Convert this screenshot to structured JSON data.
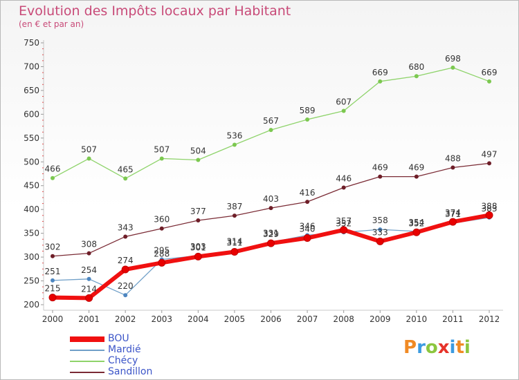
{
  "title": "Evolution des Impôts locaux par Habitant",
  "subtitle": "(en € et par an)",
  "logo": {
    "text": "Proxiti",
    "letters": [
      "P",
      "r",
      "o",
      "x",
      "i",
      "t",
      "i"
    ],
    "colors": [
      "#f08a24",
      "#3c9be0",
      "#8cc63f",
      "#e6332a",
      "#3c9be0",
      "#f08a24",
      "#8cc63f"
    ]
  },
  "chart_data": {
    "type": "line",
    "title": "Evolution des Impôts locaux par Habitant",
    "subtitle": "(en € et par an)",
    "xlabel": "",
    "ylabel": "",
    "ylim": [
      200,
      750
    ],
    "yticks": [
      200,
      250,
      300,
      350,
      400,
      450,
      500,
      550,
      600,
      650,
      700,
      750
    ],
    "x": [
      "2000",
      "2001",
      "2002",
      "2003",
      "2004",
      "2005",
      "2006",
      "2007",
      "2008",
      "2009",
      "2010",
      "2011",
      "2012"
    ],
    "grid": false,
    "legend": "bottom-left",
    "series": [
      {
        "name": "Chécy",
        "color": "#8ed36a",
        "marker": "#7cc850",
        "width": 1.3,
        "values": [
          466,
          507,
          465,
          507,
          504,
          536,
          567,
          589,
          607,
          669,
          680,
          698,
          669
        ],
        "labels": [
          "466",
          "507",
          "465",
          "507",
          "504",
          "536",
          "567",
          "589",
          "607",
          "669",
          "680",
          "698",
          "669"
        ]
      },
      {
        "name": "Sandillon",
        "color": "#7a2a34",
        "marker": "#6e1e28",
        "width": 1.3,
        "values": [
          302,
          308,
          343,
          360,
          377,
          387,
          403,
          416,
          446,
          469,
          469,
          488,
          497
        ],
        "labels": [
          "302",
          "308",
          "343",
          "360",
          "377",
          "387",
          "403",
          "416",
          "446",
          "469",
          "469",
          "488",
          "497"
        ]
      },
      {
        "name": "Mardié",
        "color": "#6f9fc8",
        "marker": "#4d86c0",
        "width": 1.3,
        "values": [
          251,
          254,
          220,
          295,
          303,
          314,
          331,
          346,
          352,
          358,
          354,
          371,
          383
        ],
        "labels": [
          "251",
          "254",
          "220",
          "295",
          "303",
          "314",
          "331",
          "346",
          "352",
          "358",
          "354",
          "371",
          "383"
        ]
      },
      {
        "name": "BOU",
        "color": "#f01010",
        "marker": "#e80000",
        "width": 6,
        "values": [
          215,
          214,
          274,
          288,
          301,
          311,
          329,
          340,
          357,
          333,
          352,
          374,
          388
        ],
        "labels": [
          "215",
          "214",
          "274",
          "288",
          "301",
          "311",
          "329",
          "340",
          "357",
          "333",
          "352",
          "374",
          "388"
        ]
      }
    ],
    "legend_order": [
      "BOU",
      "Mardié",
      "Chécy",
      "Sandillon"
    ]
  }
}
